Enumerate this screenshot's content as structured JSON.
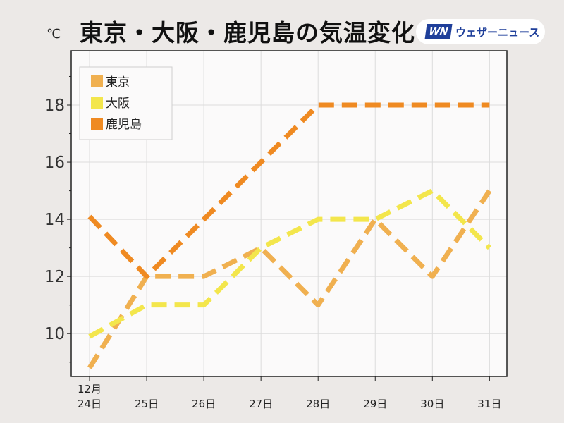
{
  "header": {
    "title": "東京・大阪・鹿児島の気温変化",
    "unit": "℃",
    "logo_mark": "WN",
    "logo_text": "ウェザーニュース"
  },
  "chart_data": {
    "type": "line",
    "title": "東京・大阪・鹿児島の気温変化",
    "ylabel": "℃",
    "xlabel": "",
    "categories": [
      "12月\n24日",
      "25日",
      "26日",
      "27日",
      "28日",
      "29日",
      "30日",
      "31日"
    ],
    "ylim": [
      8.5,
      19.9
    ],
    "yticks": [
      10,
      12,
      14,
      16,
      18
    ],
    "grid": true,
    "legend_position": "top-left",
    "series": [
      {
        "name": "東京",
        "color": "#f0b050",
        "values": [
          8.8,
          12,
          12,
          13,
          11,
          14,
          12,
          15
        ]
      },
      {
        "name": "大阪",
        "color": "#f3e64c",
        "values": [
          9.9,
          11,
          11,
          13,
          14,
          14,
          15,
          13
        ]
      },
      {
        "name": "鹿児島",
        "color": "#ef8a22",
        "values": [
          14.1,
          12,
          14,
          16,
          18,
          18,
          18,
          18
        ]
      }
    ]
  }
}
